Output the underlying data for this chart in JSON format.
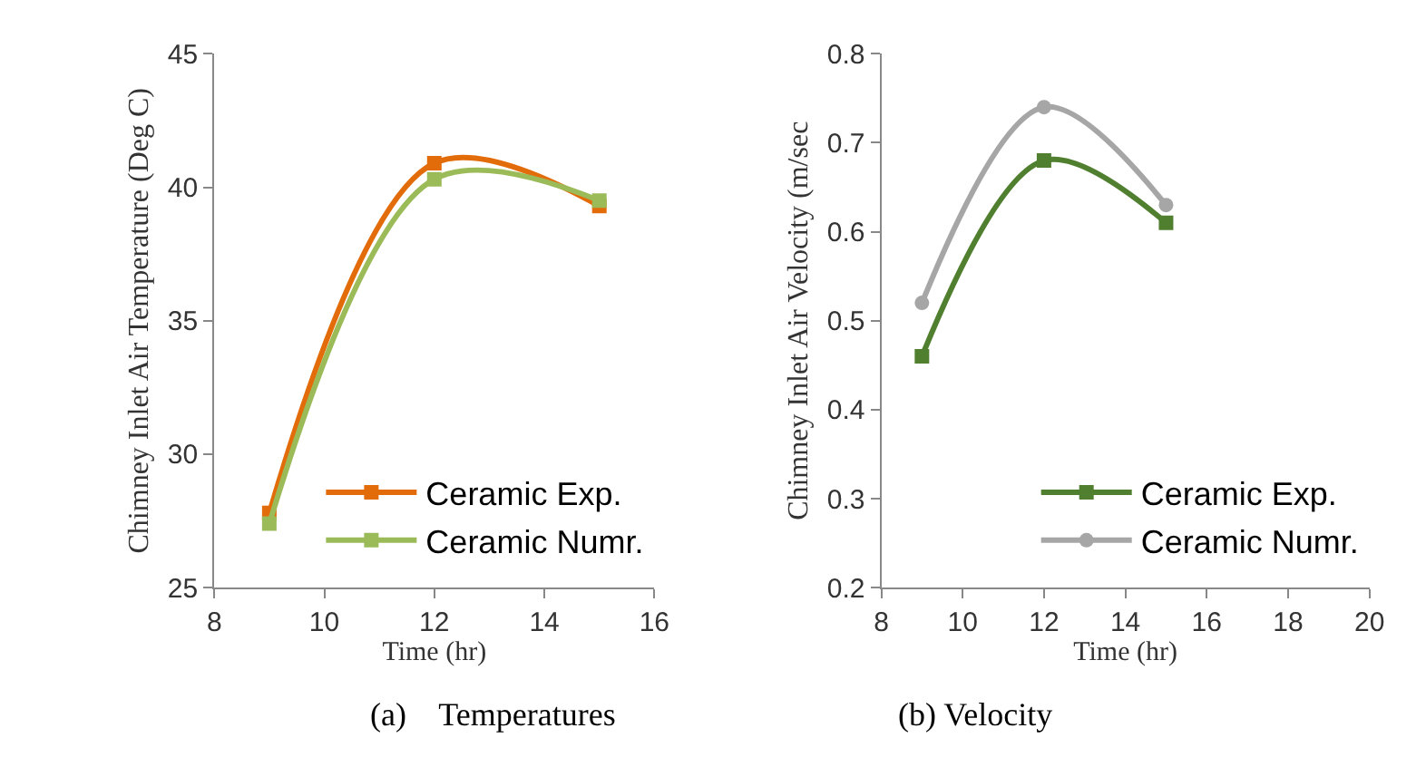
{
  "chart_data": [
    {
      "type": "line",
      "xlabel": "Time (hr)",
      "ylabel": "Chimney Inlet Air Temperature (Deg C)",
      "x": [
        9,
        12,
        15
      ],
      "xlim": [
        8,
        16
      ],
      "xticks": [
        8,
        10,
        12,
        14,
        16
      ],
      "ylim": [
        25,
        45
      ],
      "yticks": [
        25,
        30,
        35,
        40,
        45
      ],
      "marker": "square",
      "legend": "bottom right",
      "series": [
        {
          "name": "Ceramic Exp.",
          "color": "#e36c0a",
          "values": [
            27.8,
            40.9,
            39.3
          ]
        },
        {
          "name": "Ceramic Numr.",
          "color": "#9bbb59",
          "values": [
            27.4,
            40.3,
            39.5
          ]
        }
      ],
      "annotations": [
        "(a)    Temperatures"
      ]
    },
    {
      "type": "line",
      "xlabel": "Time (hr)",
      "ylabel": "Chimney Inlet Air Velocity (m/sec",
      "x": [
        9,
        12,
        15
      ],
      "xlim": [
        8,
        20
      ],
      "xticks": [
        8,
        10,
        12,
        14,
        16,
        18,
        20
      ],
      "ylim": [
        0.2,
        0.8
      ],
      "yticks": [
        0.2,
        0.3,
        0.4,
        0.5,
        0.6,
        0.7,
        0.8
      ],
      "legend": "bottom right",
      "series": [
        {
          "name": "Ceramic Exp.",
          "color": "#4f7f2f",
          "values": [
            0.46,
            0.68,
            0.61
          ],
          "marker": "square"
        },
        {
          "name": "Ceramic Numr.",
          "color": "#a6a6a6",
          "values": [
            0.52,
            0.74,
            0.63
          ],
          "marker": "circle"
        }
      ],
      "annotations": [
        "(b) Velocity"
      ]
    }
  ]
}
